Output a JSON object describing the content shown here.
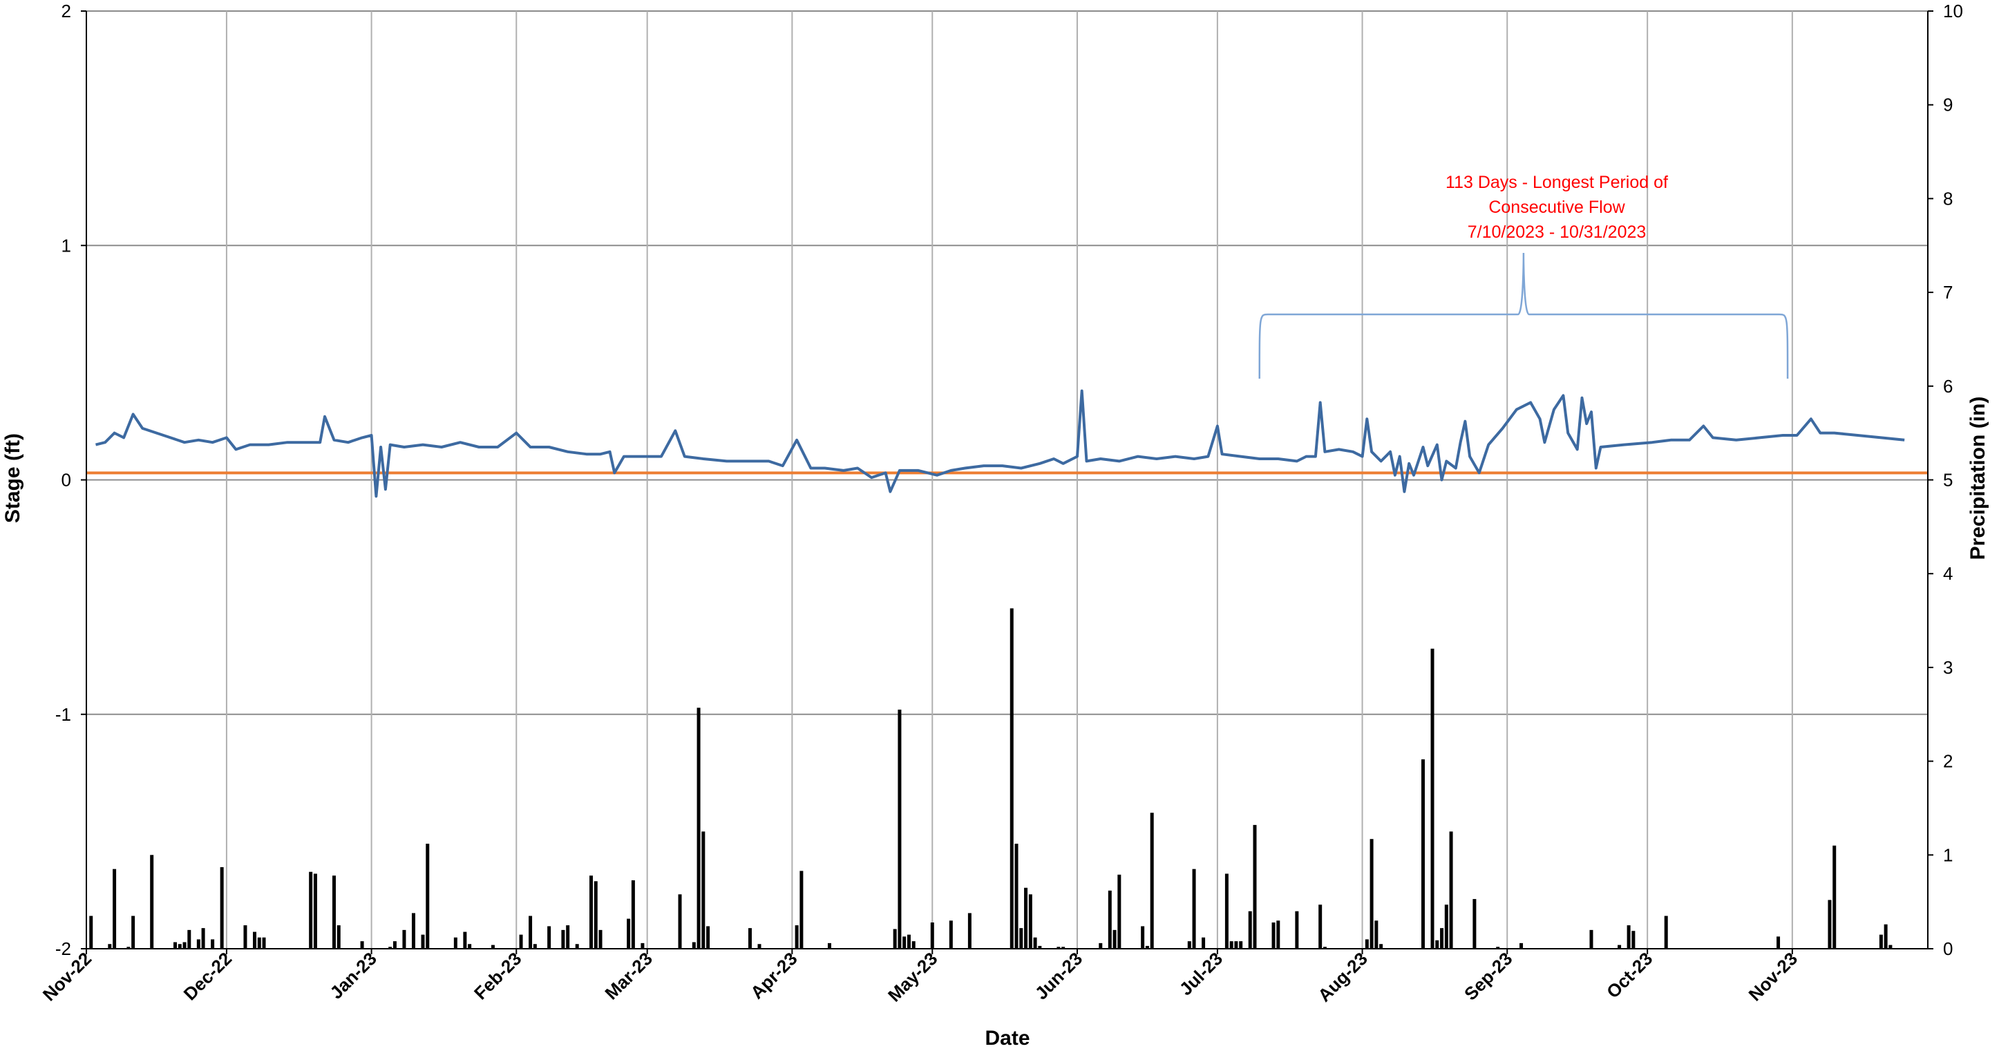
{
  "chart_data": {
    "type": "line",
    "xlabel": "Date",
    "ylabel": "Stage (ft)",
    "y2label": "Precipitation (in)",
    "ylim": [
      -2,
      2
    ],
    "y2lim": [
      0,
      10
    ],
    "xlim": [
      "2022-11-01",
      "2023-11-30"
    ],
    "yticks": [
      "2",
      "1",
      "0",
      "-1",
      "-2"
    ],
    "y2ticks": [
      "10",
      "9",
      "8",
      "7",
      "6",
      "5",
      "4",
      "3",
      "2",
      "1",
      "0"
    ],
    "xticks": [
      {
        "label": "Nov-22",
        "date": "2022-11-01"
      },
      {
        "label": "Dec-22",
        "date": "2022-12-01"
      },
      {
        "label": "Jan-23",
        "date": "2023-01-01"
      },
      {
        "label": "Feb-23",
        "date": "2023-02-01"
      },
      {
        "label": "Mar-23",
        "date": "2023-03-01"
      },
      {
        "label": "Apr-23",
        "date": "2023-04-01"
      },
      {
        "label": "May-23",
        "date": "2023-05-01"
      },
      {
        "label": "Jun-23",
        "date": "2023-06-01"
      },
      {
        "label": "Jul-23",
        "date": "2023-07-01"
      },
      {
        "label": "Aug-23",
        "date": "2023-08-01"
      },
      {
        "label": "Sep-23",
        "date": "2023-09-01"
      },
      {
        "label": "Oct-23",
        "date": "2023-10-01"
      },
      {
        "label": "Nov-23",
        "date": "2023-11-01"
      }
    ],
    "grid": true,
    "threshold": {
      "value": 0.03,
      "color": "#ed7d31"
    },
    "series": [
      {
        "axis": "left",
        "kind": "line",
        "color": "#3d6aa1",
        "points": [
          [
            "2022-11-03",
            0.15
          ],
          [
            "2022-11-05",
            0.16
          ],
          [
            "2022-11-07",
            0.2
          ],
          [
            "2022-11-09",
            0.18
          ],
          [
            "2022-11-11",
            0.28
          ],
          [
            "2022-11-13",
            0.22
          ],
          [
            "2022-11-16",
            0.2
          ],
          [
            "2022-11-19",
            0.18
          ],
          [
            "2022-11-22",
            0.16
          ],
          [
            "2022-11-25",
            0.17
          ],
          [
            "2022-11-28",
            0.16
          ],
          [
            "2022-12-01",
            0.18
          ],
          [
            "2022-12-03",
            0.13
          ],
          [
            "2022-12-06",
            0.15
          ],
          [
            "2022-12-10",
            0.15
          ],
          [
            "2022-12-14",
            0.16
          ],
          [
            "2022-12-18",
            0.16
          ],
          [
            "2022-12-21",
            0.16
          ],
          [
            "2022-12-22",
            0.27
          ],
          [
            "2022-12-24",
            0.17
          ],
          [
            "2022-12-27",
            0.16
          ],
          [
            "2022-12-30",
            0.18
          ],
          [
            "2023-01-01",
            0.19
          ],
          [
            "2023-01-02",
            -0.07
          ],
          [
            "2023-01-03",
            0.14
          ],
          [
            "2023-01-04",
            -0.04
          ],
          [
            "2023-01-05",
            0.15
          ],
          [
            "2023-01-08",
            0.14
          ],
          [
            "2023-01-12",
            0.15
          ],
          [
            "2023-01-16",
            0.14
          ],
          [
            "2023-01-20",
            0.16
          ],
          [
            "2023-01-24",
            0.14
          ],
          [
            "2023-01-28",
            0.14
          ],
          [
            "2023-02-01",
            0.2
          ],
          [
            "2023-02-04",
            0.14
          ],
          [
            "2023-02-08",
            0.14
          ],
          [
            "2023-02-12",
            0.12
          ],
          [
            "2023-02-16",
            0.11
          ],
          [
            "2023-02-19",
            0.11
          ],
          [
            "2023-02-21",
            0.12
          ],
          [
            "2023-02-22",
            0.03
          ],
          [
            "2023-02-24",
            0.1
          ],
          [
            "2023-02-28",
            0.1
          ],
          [
            "2023-03-04",
            0.1
          ],
          [
            "2023-03-07",
            0.21
          ],
          [
            "2023-03-09",
            0.1
          ],
          [
            "2023-03-13",
            0.09
          ],
          [
            "2023-03-18",
            0.08
          ],
          [
            "2023-03-23",
            0.08
          ],
          [
            "2023-03-27",
            0.08
          ],
          [
            "2023-03-30",
            0.06
          ],
          [
            "2023-04-02",
            0.17
          ],
          [
            "2023-04-05",
            0.05
          ],
          [
            "2023-04-08",
            0.05
          ],
          [
            "2023-04-12",
            0.04
          ],
          [
            "2023-04-15",
            0.05
          ],
          [
            "2023-04-18",
            0.01
          ],
          [
            "2023-04-21",
            0.03
          ],
          [
            "2023-04-22",
            -0.05
          ],
          [
            "2023-04-24",
            0.04
          ],
          [
            "2023-04-28",
            0.04
          ],
          [
            "2023-05-02",
            0.02
          ],
          [
            "2023-05-05",
            0.04
          ],
          [
            "2023-05-08",
            0.05
          ],
          [
            "2023-05-12",
            0.06
          ],
          [
            "2023-05-16",
            0.06
          ],
          [
            "2023-05-20",
            0.05
          ],
          [
            "2023-05-24",
            0.07
          ],
          [
            "2023-05-27",
            0.09
          ],
          [
            "2023-05-29",
            0.07
          ],
          [
            "2023-06-01",
            0.1
          ],
          [
            "2023-06-02",
            0.38
          ],
          [
            "2023-06-03",
            0.08
          ],
          [
            "2023-06-06",
            0.09
          ],
          [
            "2023-06-10",
            0.08
          ],
          [
            "2023-06-14",
            0.1
          ],
          [
            "2023-06-18",
            0.09
          ],
          [
            "2023-06-22",
            0.1
          ],
          [
            "2023-06-26",
            0.09
          ],
          [
            "2023-06-29",
            0.1
          ],
          [
            "2023-07-01",
            0.23
          ],
          [
            "2023-07-02",
            0.11
          ],
          [
            "2023-07-06",
            0.1
          ],
          [
            "2023-07-10",
            0.09
          ],
          [
            "2023-07-14",
            0.09
          ],
          [
            "2023-07-18",
            0.08
          ],
          [
            "2023-07-20",
            0.1
          ],
          [
            "2023-07-22",
            0.1
          ],
          [
            "2023-07-23",
            0.33
          ],
          [
            "2023-07-24",
            0.12
          ],
          [
            "2023-07-27",
            0.13
          ],
          [
            "2023-07-30",
            0.12
          ],
          [
            "2023-08-01",
            0.1
          ],
          [
            "2023-08-02",
            0.26
          ],
          [
            "2023-08-03",
            0.12
          ],
          [
            "2023-08-05",
            0.08
          ],
          [
            "2023-08-07",
            0.12
          ],
          [
            "2023-08-08",
            0.02
          ],
          [
            "2023-08-09",
            0.1
          ],
          [
            "2023-08-10",
            -0.05
          ],
          [
            "2023-08-11",
            0.07
          ],
          [
            "2023-08-12",
            0.02
          ],
          [
            "2023-08-14",
            0.14
          ],
          [
            "2023-08-15",
            0.06
          ],
          [
            "2023-08-17",
            0.15
          ],
          [
            "2023-08-18",
            0.0
          ],
          [
            "2023-08-19",
            0.08
          ],
          [
            "2023-08-21",
            0.05
          ],
          [
            "2023-08-22",
            0.16
          ],
          [
            "2023-08-23",
            0.25
          ],
          [
            "2023-08-24",
            0.1
          ],
          [
            "2023-08-26",
            0.03
          ],
          [
            "2023-08-28",
            0.15
          ],
          [
            "2023-08-31",
            0.22
          ],
          [
            "2023-09-03",
            0.3
          ],
          [
            "2023-09-06",
            0.33
          ],
          [
            "2023-09-08",
            0.26
          ],
          [
            "2023-09-09",
            0.16
          ],
          [
            "2023-09-11",
            0.3
          ],
          [
            "2023-09-13",
            0.36
          ],
          [
            "2023-09-14",
            0.2
          ],
          [
            "2023-09-16",
            0.13
          ],
          [
            "2023-09-17",
            0.35
          ],
          [
            "2023-09-18",
            0.24
          ],
          [
            "2023-09-19",
            0.29
          ],
          [
            "2023-09-20",
            0.05
          ],
          [
            "2023-09-21",
            0.14
          ],
          [
            "2023-09-26",
            0.15
          ],
          [
            "2023-10-02",
            0.16
          ],
          [
            "2023-10-06",
            0.17
          ],
          [
            "2023-10-10",
            0.17
          ],
          [
            "2023-10-13",
            0.23
          ],
          [
            "2023-10-15",
            0.18
          ],
          [
            "2023-10-20",
            0.17
          ],
          [
            "2023-10-25",
            0.18
          ],
          [
            "2023-10-30",
            0.19
          ],
          [
            "2023-11-02",
            0.19
          ],
          [
            "2023-11-05",
            0.26
          ],
          [
            "2023-11-07",
            0.2
          ],
          [
            "2023-11-10",
            0.2
          ],
          [
            "2023-11-15",
            0.19
          ],
          [
            "2023-11-20",
            0.18
          ],
          [
            "2023-11-25",
            0.17
          ]
        ]
      },
      {
        "axis": "right",
        "kind": "bar",
        "color": "#000000",
        "points": [
          [
            "2022-11-02",
            0.35
          ],
          [
            "2022-11-06",
            0.05
          ],
          [
            "2022-11-07",
            0.85
          ],
          [
            "2022-11-10",
            0.02
          ],
          [
            "2022-11-11",
            0.35
          ],
          [
            "2022-11-15",
            1.0
          ],
          [
            "2022-11-20",
            0.07
          ],
          [
            "2022-11-21",
            0.05
          ],
          [
            "2022-11-22",
            0.07
          ],
          [
            "2022-11-23",
            0.2
          ],
          [
            "2022-11-25",
            0.1
          ],
          [
            "2022-11-26",
            0.22
          ],
          [
            "2022-11-28",
            0.1
          ],
          [
            "2022-11-30",
            0.87
          ],
          [
            "2022-12-05",
            0.25
          ],
          [
            "2022-12-07",
            0.18
          ],
          [
            "2022-12-08",
            0.12
          ],
          [
            "2022-12-09",
            0.12
          ],
          [
            "2022-12-19",
            0.82
          ],
          [
            "2022-12-20",
            0.8
          ],
          [
            "2022-12-24",
            0.78
          ],
          [
            "2022-12-25",
            0.25
          ],
          [
            "2022-12-30",
            0.08
          ],
          [
            "2023-01-05",
            0.02
          ],
          [
            "2023-01-06",
            0.08
          ],
          [
            "2023-01-08",
            0.2
          ],
          [
            "2023-01-10",
            0.38
          ],
          [
            "2023-01-12",
            0.15
          ],
          [
            "2023-01-13",
            1.12
          ],
          [
            "2023-01-19",
            0.12
          ],
          [
            "2023-01-21",
            0.18
          ],
          [
            "2023-01-22",
            0.05
          ],
          [
            "2023-01-27",
            0.04
          ],
          [
            "2023-02-02",
            0.15
          ],
          [
            "2023-02-04",
            0.35
          ],
          [
            "2023-02-05",
            0.05
          ],
          [
            "2023-02-08",
            0.24
          ],
          [
            "2023-02-11",
            0.2
          ],
          [
            "2023-02-12",
            0.25
          ],
          [
            "2023-02-14",
            0.05
          ],
          [
            "2023-02-17",
            0.78
          ],
          [
            "2023-02-18",
            0.72
          ],
          [
            "2023-02-19",
            0.2
          ],
          [
            "2023-02-25",
            0.32
          ],
          [
            "2023-02-26",
            0.73
          ],
          [
            "2023-02-28",
            0.06
          ],
          [
            "2023-03-08",
            0.58
          ],
          [
            "2023-03-11",
            0.07
          ],
          [
            "2023-03-12",
            2.57
          ],
          [
            "2023-03-13",
            1.25
          ],
          [
            "2023-03-14",
            0.24
          ],
          [
            "2023-03-23",
            0.22
          ],
          [
            "2023-03-25",
            0.05
          ],
          [
            "2023-04-02",
            0.25
          ],
          [
            "2023-04-03",
            0.83
          ],
          [
            "2023-04-09",
            0.06
          ],
          [
            "2023-04-23",
            0.21
          ],
          [
            "2023-04-24",
            2.55
          ],
          [
            "2023-04-25",
            0.13
          ],
          [
            "2023-04-26",
            0.15
          ],
          [
            "2023-04-27",
            0.08
          ],
          [
            "2023-05-01",
            0.28
          ],
          [
            "2023-05-05",
            0.3
          ],
          [
            "2023-05-09",
            0.38
          ],
          [
            "2023-05-18",
            3.63
          ],
          [
            "2023-05-19",
            1.12
          ],
          [
            "2023-05-20",
            0.22
          ],
          [
            "2023-05-21",
            0.65
          ],
          [
            "2023-05-22",
            0.58
          ],
          [
            "2023-05-23",
            0.12
          ],
          [
            "2023-05-24",
            0.03
          ],
          [
            "2023-05-28",
            0.02
          ],
          [
            "2023-05-29",
            0.02
          ],
          [
            "2023-06-06",
            0.06
          ],
          [
            "2023-06-08",
            0.62
          ],
          [
            "2023-06-09",
            0.2
          ],
          [
            "2023-06-10",
            0.79
          ],
          [
            "2023-06-15",
            0.24
          ],
          [
            "2023-06-16",
            0.03
          ],
          [
            "2023-06-17",
            1.45
          ],
          [
            "2023-06-25",
            0.08
          ],
          [
            "2023-06-26",
            0.85
          ],
          [
            "2023-06-28",
            0.12
          ],
          [
            "2023-07-03",
            0.8
          ],
          [
            "2023-07-04",
            0.08
          ],
          [
            "2023-07-05",
            0.08
          ],
          [
            "2023-07-06",
            0.08
          ],
          [
            "2023-07-08",
            0.4
          ],
          [
            "2023-07-09",
            1.32
          ],
          [
            "2023-07-13",
            0.28
          ],
          [
            "2023-07-14",
            0.3
          ],
          [
            "2023-07-18",
            0.4
          ],
          [
            "2023-07-23",
            0.47
          ],
          [
            "2023-07-24",
            0.02
          ],
          [
            "2023-08-02",
            0.1
          ],
          [
            "2023-08-03",
            1.17
          ],
          [
            "2023-08-04",
            0.3
          ],
          [
            "2023-08-05",
            0.05
          ],
          [
            "2023-08-14",
            2.02
          ],
          [
            "2023-08-16",
            3.2
          ],
          [
            "2023-08-17",
            0.09
          ],
          [
            "2023-08-18",
            0.22
          ],
          [
            "2023-08-19",
            0.47
          ],
          [
            "2023-08-20",
            1.25
          ],
          [
            "2023-08-25",
            0.53
          ],
          [
            "2023-08-30",
            0.02
          ],
          [
            "2023-09-04",
            0.06
          ],
          [
            "2023-09-19",
            0.2
          ],
          [
            "2023-09-25",
            0.04
          ],
          [
            "2023-09-27",
            0.25
          ],
          [
            "2023-09-28",
            0.19
          ],
          [
            "2023-10-05",
            0.35
          ],
          [
            "2023-10-29",
            0.13
          ],
          [
            "2023-11-09",
            0.52
          ],
          [
            "2023-11-10",
            1.1
          ],
          [
            "2023-11-20",
            0.15
          ],
          [
            "2023-11-21",
            0.26
          ],
          [
            "2023-11-22",
            0.04
          ]
        ]
      }
    ],
    "annotation": {
      "lines": [
        "113 Days - Longest Period of",
        "Consecutive Flow",
        "7/10/2023 - 10/31/2023"
      ],
      "color": "#ff0000",
      "bracket_start": "2023-07-10",
      "bracket_end": "2023-10-31",
      "bracket_color": "#7fa6d6"
    }
  }
}
